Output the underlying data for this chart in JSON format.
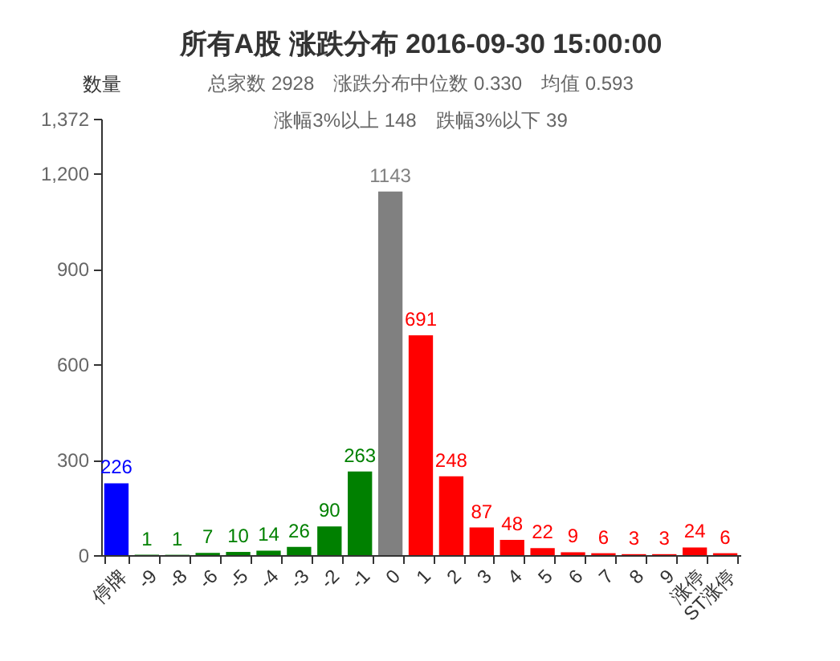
{
  "chart_data": {
    "type": "bar",
    "title": "所有A股 涨跌分布 2016-09-30 15:00:00",
    "subtitle": "总家数 2928　涨跌分布中位数 0.330　均值 0.593\n涨幅3%以上 148　跌幅3%以下 39",
    "ylabel": "数量",
    "categories": [
      "停牌",
      "-9",
      "-8",
      "-6",
      "-5",
      "-4",
      "-3",
      "-2",
      "-1",
      "0",
      "1",
      "2",
      "3",
      "4",
      "5",
      "6",
      "7",
      "8",
      "9",
      "涨停",
      "ST涨停"
    ],
    "values": [
      226,
      1,
      1,
      7,
      10,
      14,
      26,
      90,
      263,
      1143,
      691,
      248,
      87,
      48,
      22,
      9,
      6,
      3,
      3,
      24,
      6
    ],
    "colors": [
      "#0000ff",
      "#008000",
      "#008000",
      "#008000",
      "#008000",
      "#008000",
      "#008000",
      "#008000",
      "#008000",
      "#808080",
      "#ff0000",
      "#ff0000",
      "#ff0000",
      "#ff0000",
      "#ff0000",
      "#ff0000",
      "#ff0000",
      "#ff0000",
      "#ff0000",
      "#ff0000",
      "#ff0000"
    ],
    "ylim": [
      0,
      1372
    ],
    "yticks": [
      0,
      300,
      600,
      900,
      {
        "value": 1200,
        "label": "1,200"
      },
      {
        "value": 1372,
        "label": "1,372"
      }
    ],
    "data_labels": true
  }
}
